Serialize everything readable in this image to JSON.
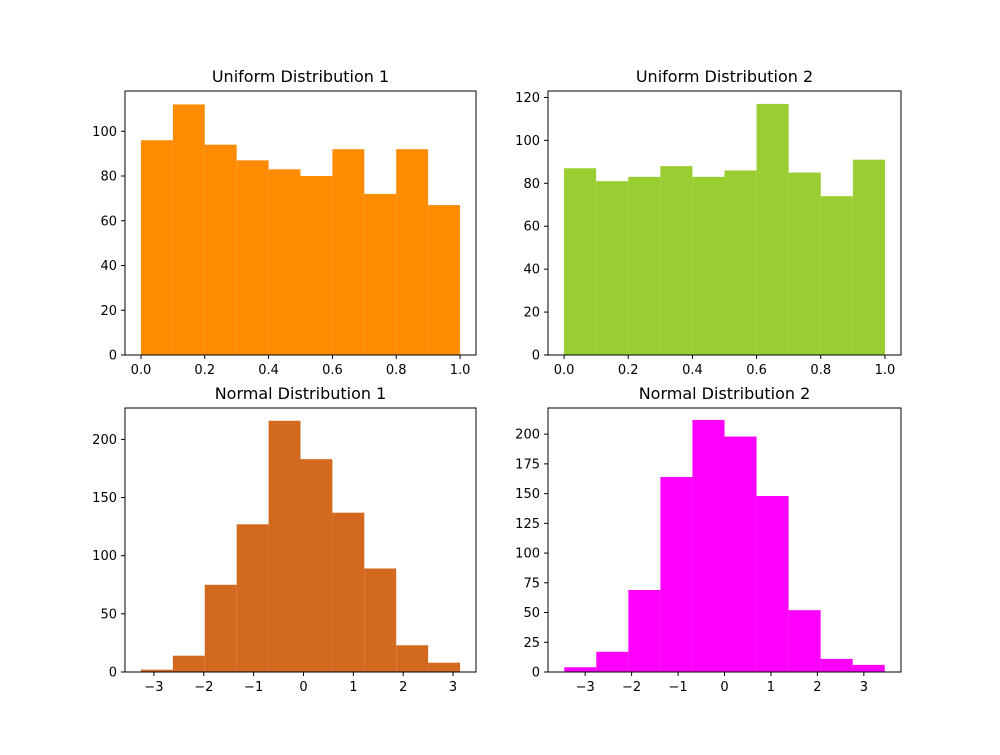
{
  "chart_data": [
    {
      "type": "bar",
      "title": "Uniform Distribution 1",
      "color": "#ff8c00",
      "bin_edges": [
        0.0,
        0.1,
        0.2,
        0.3,
        0.4,
        0.5,
        0.6,
        0.7,
        0.8,
        0.9,
        1.0
      ],
      "values": [
        96,
        112,
        94,
        87,
        83,
        80,
        92,
        72,
        92,
        67
      ],
      "xlim": [
        -0.05,
        1.05
      ],
      "ylim": [
        0,
        118
      ],
      "xticks": [
        0.0,
        0.2,
        0.4,
        0.6,
        0.8,
        1.0
      ],
      "xtick_labels": [
        "0.0",
        "0.2",
        "0.4",
        "0.6",
        "0.8",
        "1.0"
      ],
      "yticks": [
        0,
        20,
        40,
        60,
        80,
        100
      ],
      "ytick_labels": [
        "0",
        "20",
        "40",
        "60",
        "80",
        "100"
      ]
    },
    {
      "type": "bar",
      "title": "Uniform Distribution 2",
      "color": "#9acd32",
      "bin_edges": [
        0.0,
        0.1,
        0.2,
        0.3,
        0.4,
        0.5,
        0.6,
        0.7,
        0.8,
        0.9,
        1.0
      ],
      "values": [
        87,
        81,
        83,
        88,
        83,
        86,
        117,
        85,
        74,
        91
      ],
      "xlim": [
        -0.05,
        1.05
      ],
      "ylim": [
        0,
        123
      ],
      "xticks": [
        0.0,
        0.2,
        0.4,
        0.6,
        0.8,
        1.0
      ],
      "xtick_labels": [
        "0.0",
        "0.2",
        "0.4",
        "0.6",
        "0.8",
        "1.0"
      ],
      "yticks": [
        0,
        20,
        40,
        60,
        80,
        100,
        120
      ],
      "ytick_labels": [
        "0",
        "20",
        "40",
        "60",
        "80",
        "100",
        "120"
      ]
    },
    {
      "type": "bar",
      "title": "Normal Distribution 1",
      "color": "#d2691e",
      "bin_edges": [
        -3.26,
        -2.62,
        -1.98,
        -1.34,
        -0.7,
        -0.06,
        0.58,
        1.22,
        1.86,
        2.5,
        3.14
      ],
      "values": [
        2,
        14,
        75,
        127,
        216,
        183,
        137,
        89,
        23,
        8
      ],
      "xlim": [
        -3.58,
        3.46
      ],
      "ylim": [
        0,
        227
      ],
      "xticks": [
        -3,
        -2,
        -1,
        0,
        1,
        2,
        3
      ],
      "xtick_labels": [
        "−3",
        "−2",
        "−1",
        "0",
        "1",
        "2",
        "3"
      ],
      "yticks": [
        0,
        50,
        100,
        150,
        200
      ],
      "ytick_labels": [
        "0",
        "50",
        "100",
        "150",
        "200"
      ]
    },
    {
      "type": "bar",
      "title": "Normal Distribution 2",
      "color": "#ff00ff",
      "bin_edges": [
        -3.45,
        -2.76,
        -2.07,
        -1.38,
        -0.69,
        0.0,
        0.69,
        1.38,
        2.07,
        2.76,
        3.45
      ],
      "values": [
        4,
        17,
        69,
        164,
        212,
        198,
        148,
        52,
        11,
        6
      ],
      "xlim": [
        -3.8,
        3.8
      ],
      "ylim": [
        0,
        222
      ],
      "xticks": [
        -3,
        -2,
        -1,
        0,
        1,
        2,
        3
      ],
      "xtick_labels": [
        "−3",
        "−2",
        "−1",
        "0",
        "1",
        "2",
        "3"
      ],
      "yticks": [
        0,
        25,
        50,
        75,
        100,
        125,
        150,
        175,
        200
      ],
      "ytick_labels": [
        "0",
        "25",
        "50",
        "75",
        "100",
        "125",
        "150",
        "175",
        "200"
      ]
    }
  ]
}
